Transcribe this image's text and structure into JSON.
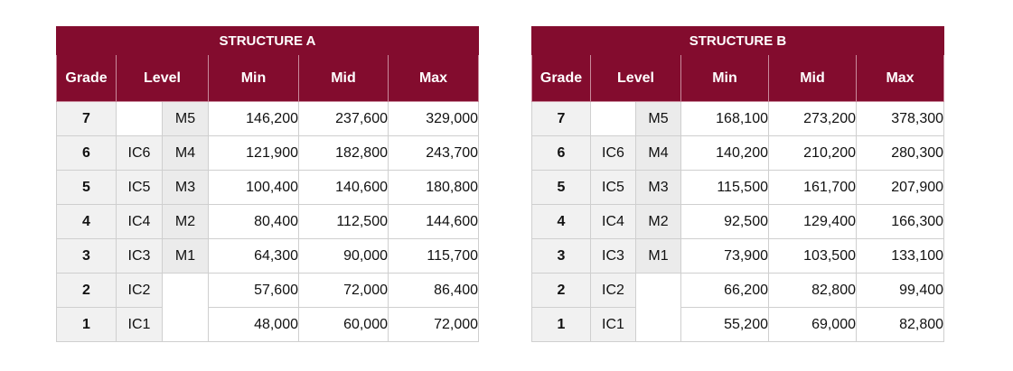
{
  "structures": [
    {
      "title": "STRUCTURE A",
      "headers": {
        "grade": "Grade",
        "level": "Level",
        "min": "Min",
        "mid": "Mid",
        "max": "Max"
      },
      "rows": [
        {
          "grade": "7",
          "ic": "",
          "m": "M5",
          "min": "146,200",
          "mid": "237,600",
          "max": "329,000"
        },
        {
          "grade": "6",
          "ic": "IC6",
          "m": "M4",
          "min": "121,900",
          "mid": "182,800",
          "max": "243,700"
        },
        {
          "grade": "5",
          "ic": "IC5",
          "m": "M3",
          "min": "100,400",
          "mid": "140,600",
          "max": "180,800"
        },
        {
          "grade": "4",
          "ic": "IC4",
          "m": "M2",
          "min": "80,400",
          "mid": "112,500",
          "max": "144,600"
        },
        {
          "grade": "3",
          "ic": "IC3",
          "m": "M1",
          "min": "64,300",
          "mid": "90,000",
          "max": "115,700"
        },
        {
          "grade": "2",
          "ic": "IC2",
          "m": "",
          "min": "57,600",
          "mid": "72,000",
          "max": "86,400"
        },
        {
          "grade": "1",
          "ic": "IC1",
          "m": "",
          "min": "48,000",
          "mid": "60,000",
          "max": "72,000"
        }
      ]
    },
    {
      "title": "STRUCTURE B",
      "headers": {
        "grade": "Grade",
        "level": "Level",
        "min": "Min",
        "mid": "Mid",
        "max": "Max"
      },
      "rows": [
        {
          "grade": "7",
          "ic": "",
          "m": "M5",
          "min": "168,100",
          "mid": "273,200",
          "max": "378,300"
        },
        {
          "grade": "6",
          "ic": "IC6",
          "m": "M4",
          "min": "140,200",
          "mid": "210,200",
          "max": "280,300"
        },
        {
          "grade": "5",
          "ic": "IC5",
          "m": "M3",
          "min": "115,500",
          "mid": "161,700",
          "max": "207,900"
        },
        {
          "grade": "4",
          "ic": "IC4",
          "m": "M2",
          "min": "92,500",
          "mid": "129,400",
          "max": "166,300"
        },
        {
          "grade": "3",
          "ic": "IC3",
          "m": "M1",
          "min": "73,900",
          "mid": "103,500",
          "max": "133,100"
        },
        {
          "grade": "2",
          "ic": "IC2",
          "m": "",
          "min": "66,200",
          "mid": "82,800",
          "max": "99,400"
        },
        {
          "grade": "1",
          "ic": "IC1",
          "m": "",
          "min": "55,200",
          "mid": "69,000",
          "max": "82,800"
        }
      ]
    }
  ],
  "colors": {
    "header_bg": "#830c2e",
    "header_text": "#ffffff",
    "grade_bg": "#f1f1f1"
  }
}
